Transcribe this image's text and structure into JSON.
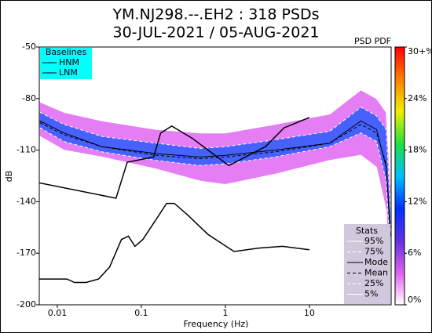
{
  "chart_data": {
    "type": "psd_pdf",
    "title": [
      "YM.NJ298.--.EH2 : 318 PSDs",
      "30-JUL-2021 / 05-AUG-2021"
    ],
    "corner_label": "PSD PDF",
    "x_label": "Frequency (Hz)",
    "y_label": "dB",
    "x_log": true,
    "xlim": [
      0.0061,
      94
    ],
    "ylim": [
      -200,
      -50
    ],
    "xticks": [
      0.01,
      0.1,
      1,
      10
    ],
    "yticks": [
      -50,
      -80,
      -110,
      -140,
      -170,
      -200
    ],
    "baselines": {
      "title": "Baselines",
      "box_color": "#00ffff",
      "series": [
        {
          "name": "HNM",
          "color": "#000000",
          "x": [
            0.0061,
            0.05,
            0.068,
            0.14,
            0.17,
            0.23,
            0.4,
            1.1,
            3,
            5,
            10
          ],
          "values": [
            -129,
            -138,
            -117,
            -114,
            -100,
            -96,
            -103,
            -119,
            -108,
            -97,
            -91
          ]
        },
        {
          "name": "LNM",
          "color": "#000000",
          "x": [
            0.0061,
            0.013,
            0.016,
            0.022,
            0.031,
            0.042,
            0.058,
            0.07,
            0.084,
            0.104,
            0.138,
            0.2,
            0.247,
            0.36,
            0.62,
            1.27,
            2.5,
            4.8,
            10
          ],
          "values": [
            -185,
            -185,
            -187,
            -187,
            -185,
            -178,
            -162,
            -160,
            -166,
            -162,
            -153,
            -141,
            -141,
            -148,
            -159,
            -169,
            -167,
            -166,
            -168
          ]
        }
      ]
    },
    "stats": {
      "title": "Stats",
      "box_color": "#d0c8dc",
      "band_colors": [
        "#e067f2",
        "#2a5cff"
      ],
      "x": [
        0.0062,
        0.012,
        0.034,
        0.15,
        0.5,
        1,
        3.9,
        17.5,
        41,
        63,
        82,
        92
      ],
      "series": [
        {
          "name": "95%",
          "color": "#ffffff",
          "dash": false,
          "values": [
            -82,
            -88,
            -93,
            -98,
            -100,
            -100,
            -95,
            -89,
            -75,
            -80,
            -88,
            -130
          ]
        },
        {
          "name": "75%",
          "color": "#ffffff",
          "dash": true,
          "values": [
            -88,
            -95,
            -102,
            -106,
            -109,
            -108,
            -104,
            -99,
            -85,
            -90,
            -98,
            -145
          ]
        },
        {
          "name": "Mode",
          "color": "#000000",
          "dash": false,
          "values": [
            -93,
            -100,
            -108,
            -112,
            -114,
            -113,
            -110,
            -106,
            -93,
            -98,
            -120,
            -160
          ]
        },
        {
          "name": "Mean",
          "color": "#000000",
          "dash": true,
          "values": [
            -94,
            -101,
            -108,
            -113,
            -115,
            -114,
            -111,
            -106,
            -95,
            -100,
            -118,
            -155
          ]
        },
        {
          "name": "25%",
          "color": "#ffffff",
          "dash": true,
          "values": [
            -97,
            -105,
            -111,
            -116,
            -119,
            -118,
            -114,
            -108,
            -100,
            -105,
            -128,
            -170
          ]
        },
        {
          "name": "5%",
          "color": "#ffffff",
          "dash": false,
          "values": [
            -102,
            -110,
            -114,
            -121,
            -128,
            -130,
            -124,
            -116,
            -113,
            -120,
            -145,
            -190
          ]
        }
      ]
    },
    "colorbar": {
      "lim": [
        0,
        30
      ],
      "colors": [
        "#ffffff",
        "#e060f0",
        "#6030e0",
        "#0030ff",
        "#00c0ff",
        "#20e040",
        "#f0f000",
        "#ff8000",
        "#ff0000"
      ],
      "ticks": [
        {
          "value": 30,
          "label": "30+%"
        },
        {
          "value": 24,
          "label": "24%"
        },
        {
          "value": 18,
          "label": "18%"
        },
        {
          "value": 12,
          "label": "12%"
        },
        {
          "value": 6,
          "label": "6%"
        },
        {
          "value": 0,
          "label": "0%"
        }
      ]
    }
  }
}
